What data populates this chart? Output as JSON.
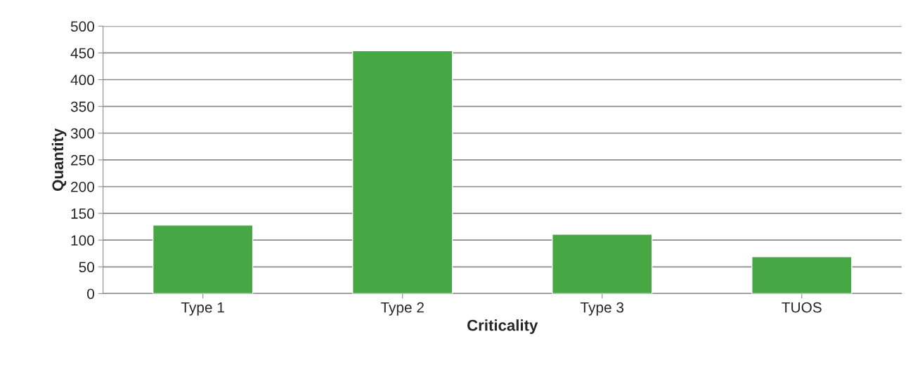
{
  "chart_data": {
    "type": "bar",
    "xlabel": "Criticality",
    "ylabel": "Quantity",
    "categories": [
      "Type 1",
      "Type 2",
      "Type 3",
      "TUOS"
    ],
    "values": [
      128,
      454,
      111,
      69
    ],
    "color": "#48a745",
    "ylim": [
      0,
      500
    ],
    "yticks": [
      0,
      50,
      100,
      150,
      200,
      250,
      300,
      350,
      400,
      450,
      500
    ],
    "grid": "y",
    "legend": false
  }
}
